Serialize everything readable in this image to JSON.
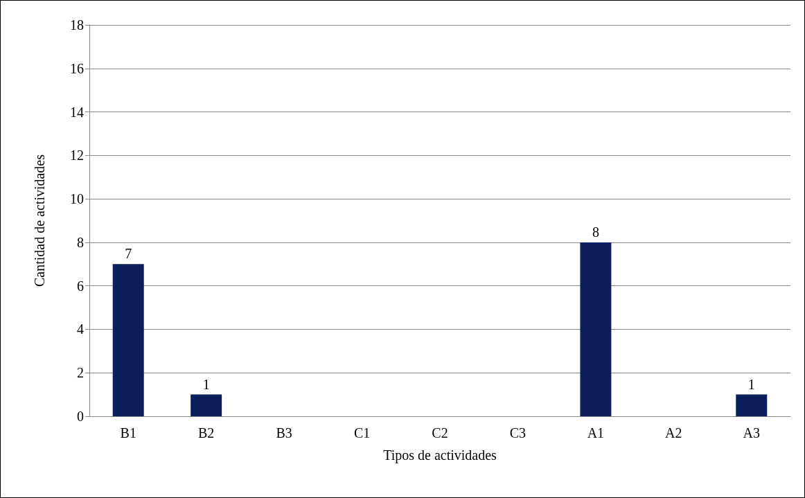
{
  "chart_data": {
    "type": "bar",
    "xlabel": "Tipos de actividades",
    "ylabel": "Cantidad de actividades",
    "categories": [
      "B1",
      "B2",
      "B3",
      "C1",
      "C2",
      "C3",
      "A1",
      "A2",
      "A3"
    ],
    "values": [
      7,
      1,
      0,
      0,
      0,
      0,
      8,
      0,
      1
    ],
    "value_labels": [
      "7",
      "1",
      null,
      null,
      null,
      null,
      "8",
      null,
      "1"
    ],
    "color": "#0c1f5c",
    "ylim": [
      0,
      18
    ],
    "yticks": [
      0,
      2,
      4,
      6,
      8,
      10,
      12,
      14,
      16,
      18
    ],
    "grid": "y"
  }
}
